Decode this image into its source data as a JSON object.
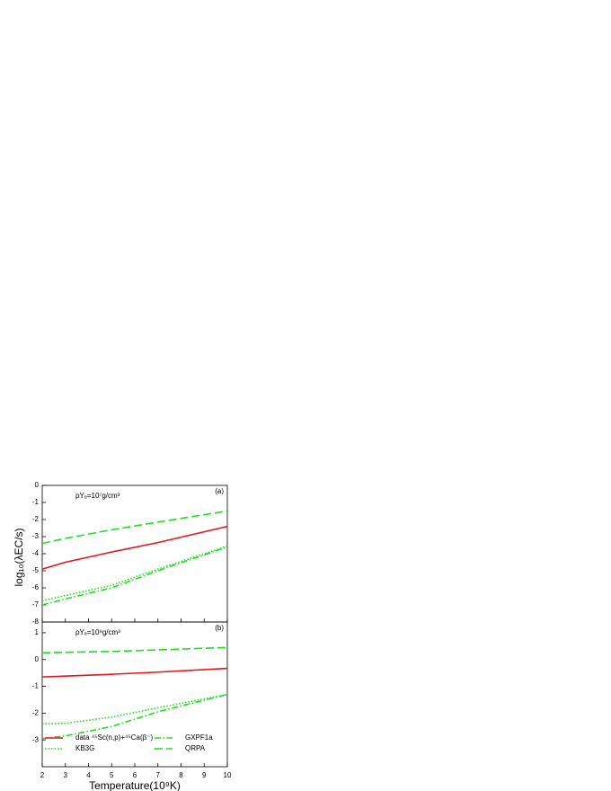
{
  "chart_data": [
    {
      "type": "line",
      "panel_label": "(a)",
      "annotation": "ρYₑ=10⁷g/cm³",
      "y_label": "log₁₀(λEC/s)",
      "xlim": [
        2,
        10
      ],
      "xticks": [
        2,
        3,
        4,
        5,
        6,
        7,
        8,
        9,
        10
      ],
      "ylim": [
        -8,
        0
      ],
      "yticks": [
        -8,
        -7,
        -6,
        -5,
        -4,
        -3,
        -2,
        -1,
        0
      ],
      "series": [
        {
          "name": "data ⁴⁵Sc(n,p)+⁴⁵Ca(β⁻)",
          "color": "#e8141c",
          "style": "solid",
          "x": [
            2,
            3,
            5,
            7,
            10
          ],
          "values": [
            -4.9,
            -4.5,
            -3.9,
            -3.35,
            -2.4
          ]
        },
        {
          "name": "GXPF1a",
          "color": "#22dd22",
          "style": "dashdot",
          "x": [
            2,
            3,
            5,
            7,
            10
          ],
          "values": [
            -7.0,
            -6.65,
            -6.0,
            -5.0,
            -3.6
          ]
        },
        {
          "name": "KB3G",
          "color": "#22dd22",
          "style": "dotted",
          "x": [
            2,
            3,
            5,
            7,
            10
          ],
          "values": [
            -6.75,
            -6.45,
            -5.85,
            -4.9,
            -3.55
          ]
        },
        {
          "name": "QRPA",
          "color": "#22dd22",
          "style": "dashed",
          "x": [
            2,
            3,
            5,
            7,
            10
          ],
          "values": [
            -3.4,
            -3.1,
            -2.6,
            -2.15,
            -1.5
          ]
        }
      ]
    },
    {
      "type": "line",
      "panel_label": "(b)",
      "annotation": "ρYₑ=10⁹g/cm³",
      "x_label": "Temperature(10⁹K)",
      "legend": "lower",
      "xlim": [
        2,
        10
      ],
      "xticks": [
        2,
        3,
        4,
        5,
        6,
        7,
        8,
        9,
        10
      ],
      "ylim": [
        -4,
        1.4
      ],
      "yticks": [
        -3,
        -2,
        -1,
        0,
        1
      ],
      "series": [
        {
          "name": "data ⁴⁵Sc(n,p)+⁴⁵Ca(β⁻)",
          "color": "#e8141c",
          "style": "solid",
          "x": [
            2,
            3,
            5,
            7,
            10
          ],
          "values": [
            -0.65,
            -0.62,
            -0.55,
            -0.47,
            -0.33
          ]
        },
        {
          "name": "GXPF1a",
          "color": "#22dd22",
          "style": "dashdot",
          "x": [
            2,
            3,
            5,
            7,
            10
          ],
          "values": [
            -2.95,
            -2.85,
            -2.5,
            -1.95,
            -1.3
          ]
        },
        {
          "name": "KB3G",
          "color": "#22dd22",
          "style": "dotted",
          "x": [
            2,
            3,
            5,
            7,
            10
          ],
          "values": [
            -2.4,
            -2.38,
            -2.15,
            -1.8,
            -1.3
          ]
        },
        {
          "name": "QRPA",
          "color": "#22dd22",
          "style": "dashed",
          "x": [
            2,
            3,
            5,
            7,
            10
          ],
          "values": [
            0.25,
            0.27,
            0.3,
            0.36,
            0.45
          ]
        }
      ]
    }
  ]
}
